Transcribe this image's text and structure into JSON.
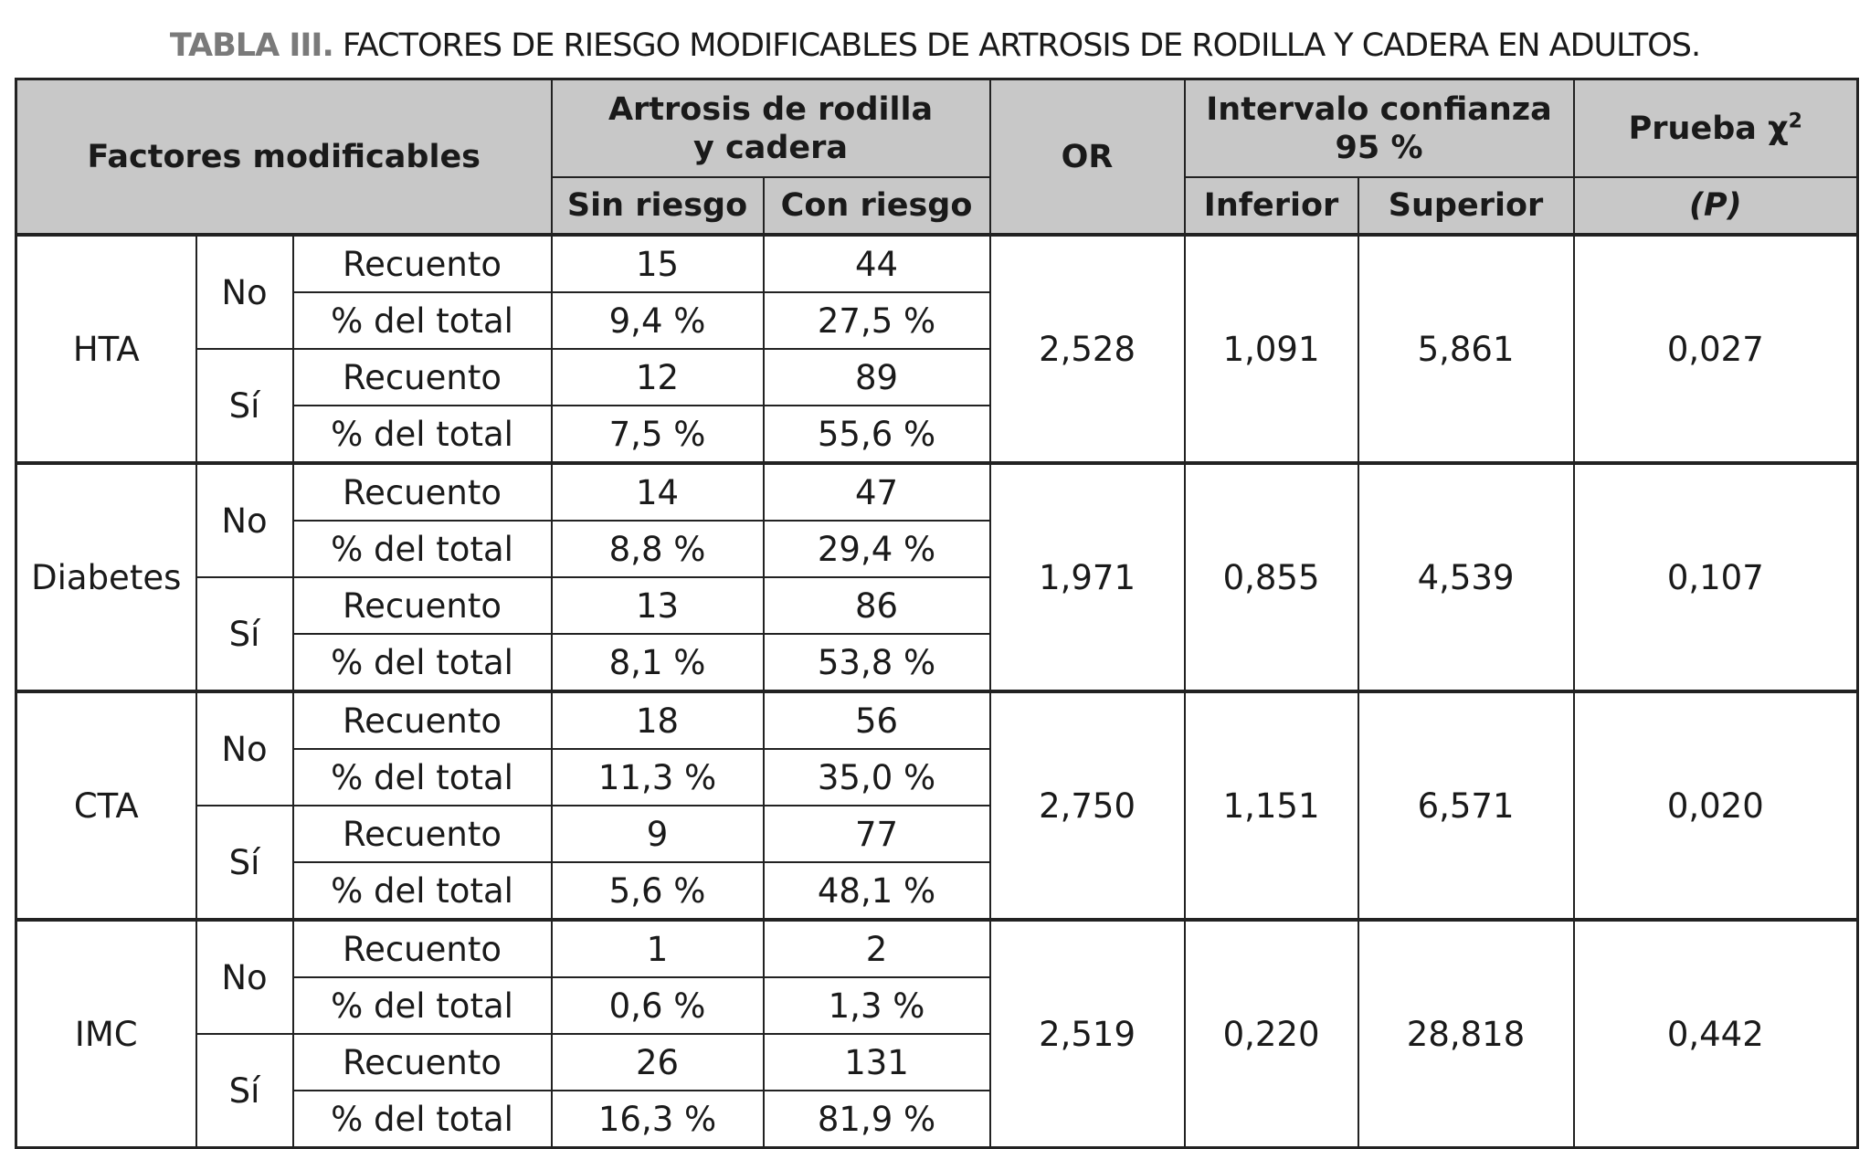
{
  "title": {
    "label": "TABLA III.",
    "text": "FACTORES DE RIESGO MODIFICABLES DE ARTROSIS DE RODILLA Y CADERA EN ADULTOS."
  },
  "header": {
    "factores": "Factores modificables",
    "artrosis_l1": "Artrosis de rodilla",
    "artrosis_l2": "y cadera",
    "sin": "Sin riesgo",
    "con": "Con riesgo",
    "or": "OR",
    "ic_l1": "Intervalo confianza",
    "ic_l2": "95 %",
    "inferior": "Inferior",
    "superior": "Superior",
    "prueba": "Prueba χ",
    "prueba_sup": "2",
    "p": "(P)"
  },
  "labels": {
    "no": "No",
    "si": "Sí",
    "recuento": "Recuento",
    "pct": "% del total"
  },
  "groups": [
    {
      "name": "HTA",
      "no": {
        "count": [
          "15",
          "44"
        ],
        "pct": [
          "9,4 %",
          "27,5 %"
        ]
      },
      "si": {
        "count": [
          "12",
          "89"
        ],
        "pct": [
          "7,5 %",
          "55,6 %"
        ]
      },
      "or": "2,528",
      "inf": "1,091",
      "sup": "5,861",
      "p": "0,027"
    },
    {
      "name": "Diabetes",
      "no": {
        "count": [
          "14",
          "47"
        ],
        "pct": [
          "8,8 %",
          "29,4 %"
        ]
      },
      "si": {
        "count": [
          "13",
          "86"
        ],
        "pct": [
          "8,1 %",
          "53,8 %"
        ]
      },
      "or": "1,971",
      "inf": "0,855",
      "sup": "4,539",
      "p": "0,107"
    },
    {
      "name": "CTA",
      "no": {
        "count": [
          "18",
          "56"
        ],
        "pct": [
          "11,3 %",
          "35,0 %"
        ]
      },
      "si": {
        "count": [
          "9",
          "77"
        ],
        "pct": [
          "5,6 %",
          "48,1 %"
        ]
      },
      "or": "2,750",
      "inf": "1,151",
      "sup": "6,571",
      "p": "0,020"
    },
    {
      "name": "IMC",
      "no": {
        "count": [
          "1",
          "2"
        ],
        "pct": [
          "0,6 %",
          "1,3 %"
        ]
      },
      "si": {
        "count": [
          "26",
          "131"
        ],
        "pct": [
          "16,3 %",
          "81,9 %"
        ]
      },
      "or": "2,519",
      "inf": "0,220",
      "sup": "28,818",
      "p": "0,442"
    }
  ]
}
